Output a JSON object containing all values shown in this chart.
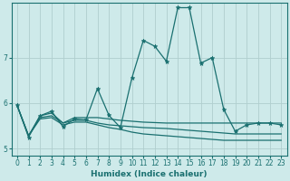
{
  "xlabel": "Humidex (Indice chaleur)",
  "background_color": "#ceeaea",
  "line_color": "#1a7070",
  "grid_color": "#b0cece",
  "xlim": [
    -0.5,
    23.5
  ],
  "ylim": [
    4.85,
    8.2
  ],
  "yticks": [
    5,
    6,
    7
  ],
  "xticks": [
    0,
    1,
    2,
    3,
    4,
    5,
    6,
    7,
    8,
    9,
    10,
    11,
    12,
    13,
    14,
    15,
    16,
    17,
    18,
    19,
    20,
    21,
    22,
    23
  ],
  "series0_x": [
    0,
    1,
    2,
    3,
    4,
    5,
    6,
    7,
    8,
    9,
    10,
    11,
    12,
    13,
    14,
    15,
    16,
    17,
    18,
    19,
    20,
    21,
    22,
    23
  ],
  "series0_y": [
    5.95,
    5.25,
    5.72,
    5.82,
    5.48,
    5.65,
    5.63,
    6.32,
    5.73,
    5.46,
    6.55,
    7.38,
    7.25,
    6.92,
    8.1,
    8.1,
    6.88,
    7.0,
    5.86,
    5.38,
    5.52,
    5.56,
    5.56,
    5.52
  ],
  "series1_y": [
    5.95,
    5.28,
    5.72,
    5.78,
    5.56,
    5.68,
    5.68,
    5.68,
    5.65,
    5.62,
    5.6,
    5.58,
    5.57,
    5.56,
    5.56,
    5.56,
    5.56,
    5.56,
    5.56,
    5.56,
    5.56,
    5.56,
    5.56,
    5.56
  ],
  "series2_y": [
    5.95,
    5.28,
    5.68,
    5.72,
    5.56,
    5.62,
    5.62,
    5.56,
    5.52,
    5.5,
    5.48,
    5.46,
    5.45,
    5.44,
    5.42,
    5.4,
    5.38,
    5.36,
    5.34,
    5.32,
    5.32,
    5.32,
    5.32,
    5.32
  ],
  "series3_y": [
    5.95,
    5.28,
    5.65,
    5.68,
    5.52,
    5.58,
    5.58,
    5.52,
    5.46,
    5.42,
    5.36,
    5.32,
    5.3,
    5.28,
    5.26,
    5.24,
    5.22,
    5.2,
    5.18,
    5.18,
    5.18,
    5.18,
    5.18,
    5.18
  ]
}
